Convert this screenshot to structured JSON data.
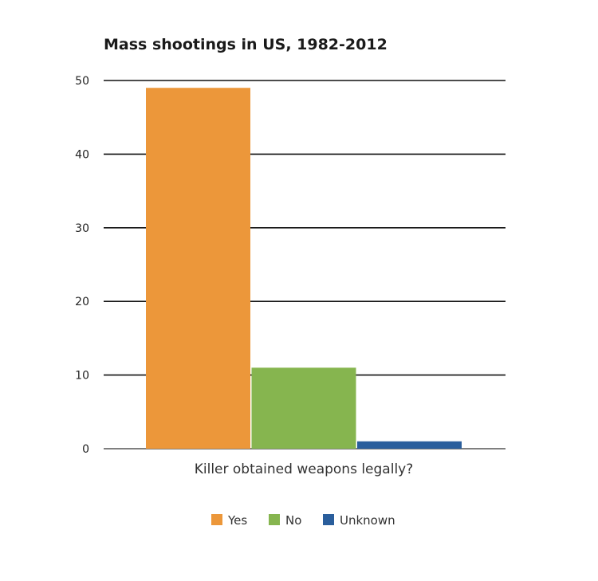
{
  "chart_data": {
    "type": "bar",
    "title": "Mass shootings in US, 1982-2012",
    "xlabel": "Killer obtained weapons legally?",
    "ylabel": "",
    "ylim": [
      0,
      50
    ],
    "yticks": [
      "0",
      "10",
      "20",
      "30",
      "40",
      "50"
    ],
    "grid": true,
    "legend_position": "bottom",
    "series": [
      {
        "name": "Yes",
        "value": 49,
        "color": "#EC973A"
      },
      {
        "name": "No",
        "value": 11,
        "color": "#86B54F"
      },
      {
        "name": "Unknown",
        "value": 1,
        "color": "#2A5E9C"
      }
    ]
  }
}
